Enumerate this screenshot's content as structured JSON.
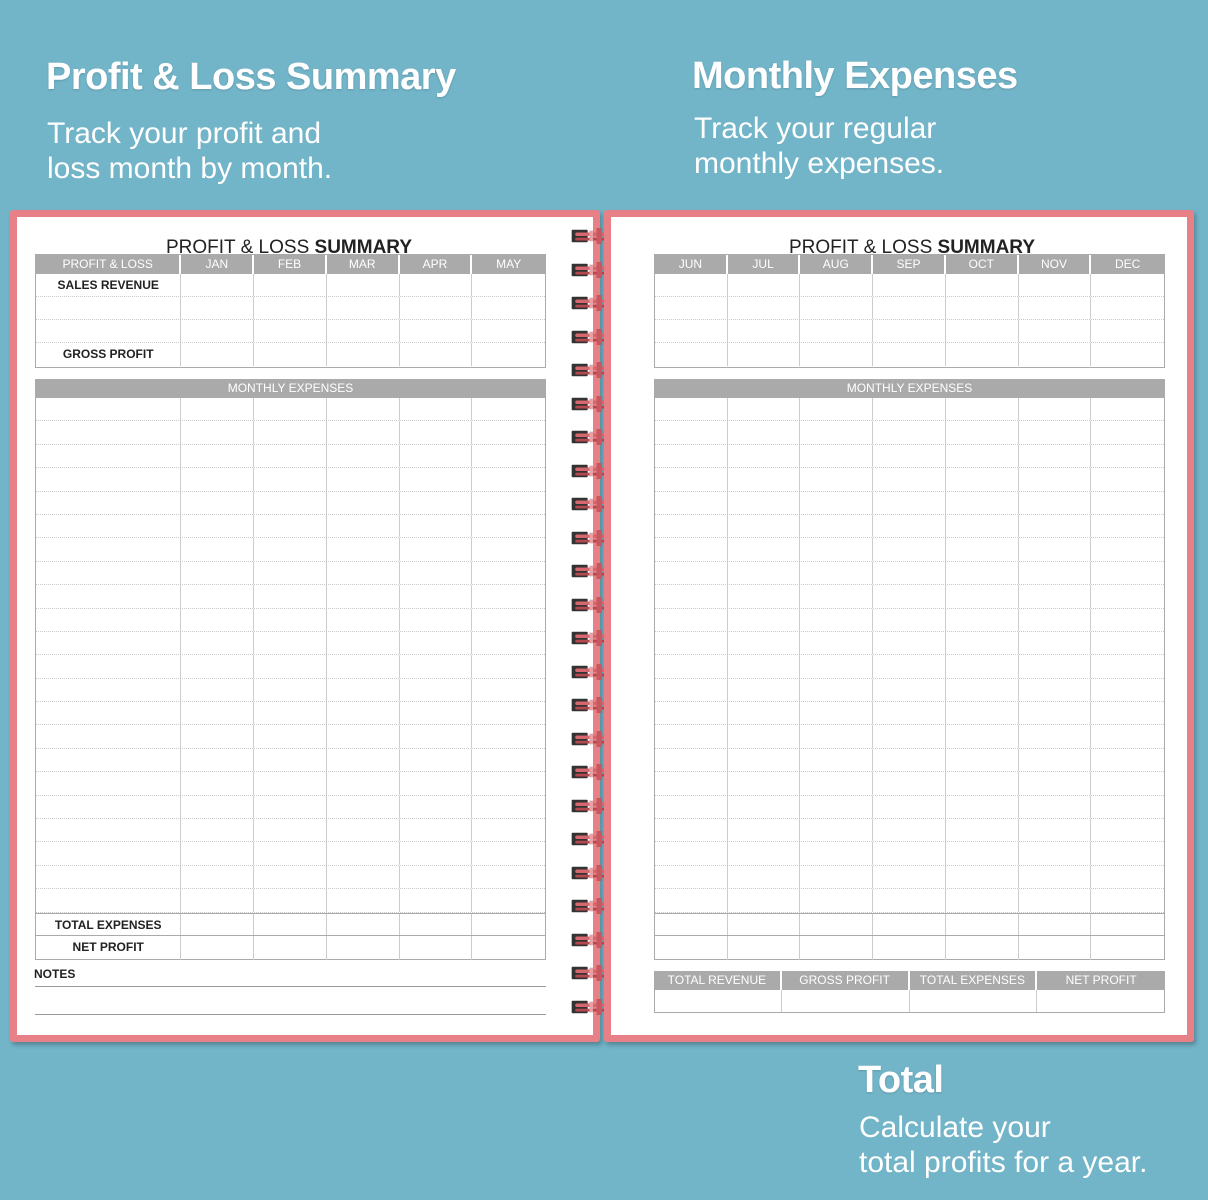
{
  "captions": {
    "left": {
      "title": "Profit & Loss Summary",
      "line1": "Track your profit and",
      "line2": "loss month by month."
    },
    "right": {
      "title": "Monthly Expenses",
      "line1": "Track your regular",
      "line2": "monthly expenses."
    },
    "bottom": {
      "title": "Total",
      "line1": "Calculate your",
      "line2": "total profits for a year."
    }
  },
  "colors": {
    "background": "#72b4c8",
    "page_border": "#e88087",
    "header_gray": "#aaaaaa"
  },
  "left_page": {
    "title_light": "PROFIT & LOSS ",
    "title_bold": "SUMMARY",
    "header": [
      "PROFIT & LOSS",
      "JAN",
      "FEB",
      "MAR",
      "APR",
      "MAY"
    ],
    "rows": [
      "SALES REVENUE",
      "",
      "",
      "GROSS PROFIT"
    ],
    "expenses_bar": "MONTHLY EXPENSES",
    "total_expenses": "TOTAL EXPENSES",
    "net_profit": "NET PROFIT",
    "notes": "NOTES"
  },
  "right_page": {
    "title_light": "PROFIT & LOSS ",
    "title_bold": "SUMMARY",
    "header": [
      "JUN",
      "JUL",
      "AUG",
      "SEP",
      "OCT",
      "NOV",
      "DEC"
    ],
    "expenses_bar": "MONTHLY EXPENSES",
    "totals": [
      "TOTAL REVENUE",
      "GROSS PROFIT",
      "TOTAL EXPENSES",
      "NET PROFIT"
    ]
  }
}
